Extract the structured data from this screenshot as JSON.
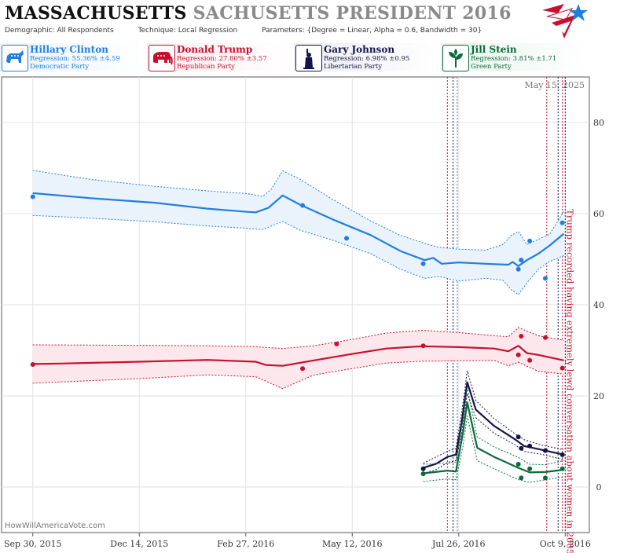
{
  "header": {
    "title_state": "MASSACHUSETTS",
    "title_race": "SACHUSETTS PRESIDENT 2016",
    "demographic_label": "Demographic:",
    "demographic_value": "All Respondents",
    "technique_label": "Technique:",
    "technique_value": "Local Regression",
    "parameters_label": "Parameters:",
    "parameters_value": "{Degree = Linear, Alpha = 0.6, Bandwidth = 30}"
  },
  "candidates": [
    {
      "name": "Hillary Clinton",
      "regression": "Regression: 55.36% ±4.59",
      "party": "Democratic Party",
      "color": "#1f7fe0",
      "bg": "#eaf3fd",
      "icon": "donkey-icon"
    },
    {
      "name": "Donald Trump",
      "regression": "Regression: 27.80% ±3.57",
      "party": "Republican Party",
      "color": "#c8102e",
      "bg": "#fdecef",
      "icon": "elephant-icon"
    },
    {
      "name": "Gary Johnson",
      "regression": "Regression: 6.98% ±0.95",
      "party": "Libertarian Party",
      "color": "#14144a",
      "bg": "#ececf3",
      "icon": "liberty-statue-icon"
    },
    {
      "name": "Jill Stein",
      "regression": "Regression: 3.81% ±1.71",
      "party": "Green Party",
      "color": "#0a6b3a",
      "bg": "#e8f3ec",
      "icon": "leaf-icon"
    }
  ],
  "chart_data": {
    "type": "line",
    "date_label": "May 15, 2025",
    "watermark": "HowWillAmericaVote.com",
    "x_ticks": [
      "2015-09-30",
      "2015-12-14",
      "2016-02-27",
      "2016-05-12",
      "2016-07-26",
      "2016-10-09"
    ],
    "x_tick_labels": [
      "Sep 30, 2015",
      "Dec 14, 2015",
      "Feb 27, 2016",
      "May 12, 2016",
      "Jul 26, 2016",
      "Oct 9, 2016"
    ],
    "xlim": [
      "2015-09-08",
      "2016-10-26"
    ],
    "ylim": [
      -10,
      90
    ],
    "y_ticks": [
      0,
      20,
      40,
      60,
      80
    ],
    "grid": true,
    "annotation": {
      "text": "Trump recorded having extremely lewd conversation about women in 2005",
      "date": "2016-10-07"
    },
    "event_lines": [
      {
        "date": "2016-07-18",
        "color": "#c8102e"
      },
      {
        "date": "2016-07-22",
        "color": "#14144a"
      },
      {
        "date": "2016-07-25",
        "color": "#1f7fe0"
      },
      {
        "date": "2016-09-26",
        "color": "#c8102e"
      },
      {
        "date": "2016-10-04",
        "color": "#14144a"
      },
      {
        "date": "2016-10-07",
        "color": "#c8102e"
      },
      {
        "date": "2016-10-09",
        "color": "#14144a"
      }
    ],
    "series": [
      {
        "name": "Hillary Clinton",
        "color": "#1f7fe0",
        "fill": "#eaf2fb",
        "line": [
          [
            "2015-09-30",
            64.5
          ],
          [
            "2015-11-10",
            63.4
          ],
          [
            "2015-12-25",
            62.4
          ],
          [
            "2016-01-31",
            61.1
          ],
          [
            "2016-02-28",
            60.4
          ],
          [
            "2016-03-05",
            60.3
          ],
          [
            "2016-03-14",
            61.3
          ],
          [
            "2016-03-24",
            64.0
          ],
          [
            "2016-04-05",
            62.0
          ],
          [
            "2016-04-30",
            58.5
          ],
          [
            "2016-05-25",
            55.3
          ],
          [
            "2016-06-15",
            51.8
          ],
          [
            "2016-07-02",
            49.8
          ],
          [
            "2016-07-08",
            50.3
          ],
          [
            "2016-07-14",
            49.0
          ],
          [
            "2016-07-26",
            49.3
          ],
          [
            "2016-08-14",
            49.0
          ],
          [
            "2016-08-30",
            48.8
          ],
          [
            "2016-09-02",
            49.4
          ],
          [
            "2016-09-06",
            48.5
          ],
          [
            "2016-09-12",
            49.8
          ],
          [
            "2016-09-20",
            51.2
          ],
          [
            "2016-09-28",
            53.0
          ],
          [
            "2016-10-08",
            55.6
          ]
        ],
        "upper": [
          [
            "2015-09-30",
            69.5
          ],
          [
            "2015-11-10",
            67.5
          ],
          [
            "2015-12-25",
            66.0
          ],
          [
            "2016-01-31",
            65.0
          ],
          [
            "2016-02-28",
            64.4
          ],
          [
            "2016-03-10",
            63.8
          ],
          [
            "2016-03-16",
            65.4
          ],
          [
            "2016-03-24",
            69.4
          ],
          [
            "2016-04-05",
            67.6
          ],
          [
            "2016-04-30",
            62.8
          ],
          [
            "2016-05-25",
            58.4
          ],
          [
            "2016-06-15",
            55.2
          ],
          [
            "2016-07-02",
            53.5
          ],
          [
            "2016-07-12",
            52.6
          ],
          [
            "2016-07-26",
            52.2
          ],
          [
            "2016-08-14",
            52.0
          ],
          [
            "2016-08-26",
            53.2
          ],
          [
            "2016-09-01",
            55.2
          ],
          [
            "2016-09-06",
            56.1
          ],
          [
            "2016-09-12",
            53.2
          ],
          [
            "2016-09-28",
            55.5
          ],
          [
            "2016-10-08",
            60.5
          ]
        ],
        "lower": [
          [
            "2015-09-30",
            59.6
          ],
          [
            "2015-11-10",
            59.0
          ],
          [
            "2015-12-25",
            58.2
          ],
          [
            "2016-01-31",
            57.3
          ],
          [
            "2016-02-28",
            56.8
          ],
          [
            "2016-03-10",
            56.5
          ],
          [
            "2016-03-24",
            58.3
          ],
          [
            "2016-04-05",
            56.4
          ],
          [
            "2016-04-30",
            54.0
          ],
          [
            "2016-05-25",
            51.2
          ],
          [
            "2016-06-15",
            47.8
          ],
          [
            "2016-07-02",
            45.8
          ],
          [
            "2016-07-12",
            46.2
          ],
          [
            "2016-07-26",
            45.2
          ],
          [
            "2016-08-14",
            45.8
          ],
          [
            "2016-08-26",
            45.4
          ],
          [
            "2016-09-01",
            43.3
          ],
          [
            "2016-09-06",
            42.2
          ],
          [
            "2016-09-12",
            44.8
          ],
          [
            "2016-09-20",
            47.8
          ],
          [
            "2016-09-28",
            49.5
          ],
          [
            "2016-10-08",
            50.8
          ]
        ],
        "points": [
          [
            "2015-09-30",
            63.7
          ],
          [
            "2016-04-07",
            61.8
          ],
          [
            "2016-05-08",
            54.6
          ],
          [
            "2016-07-01",
            49.0
          ],
          [
            "2016-09-06",
            47.8
          ],
          [
            "2016-09-08",
            49.8
          ],
          [
            "2016-09-14",
            54.0
          ],
          [
            "2016-09-25",
            45.8
          ],
          [
            "2016-10-07",
            58.0
          ]
        ]
      },
      {
        "name": "Donald Trump",
        "color": "#c8102e",
        "fill": "#fbe7ec",
        "line": [
          [
            "2015-09-30",
            27.0
          ],
          [
            "2015-10-20",
            27.1
          ],
          [
            "2015-12-14",
            27.5
          ],
          [
            "2016-01-31",
            27.9
          ],
          [
            "2016-03-05",
            27.5
          ],
          [
            "2016-03-12",
            26.8
          ],
          [
            "2016-03-24",
            26.6
          ],
          [
            "2016-04-15",
            27.8
          ],
          [
            "2016-05-12",
            29.2
          ],
          [
            "2016-06-05",
            30.4
          ],
          [
            "2016-06-30",
            30.9
          ],
          [
            "2016-07-26",
            30.7
          ],
          [
            "2016-08-20",
            30.4
          ],
          [
            "2016-08-30",
            29.8
          ],
          [
            "2016-09-06",
            31.0
          ],
          [
            "2016-09-12",
            29.4
          ],
          [
            "2016-09-20",
            29.0
          ],
          [
            "2016-10-08",
            27.8
          ]
        ],
        "upper": [
          [
            "2015-09-30",
            31.2
          ],
          [
            "2015-12-14",
            31.1
          ],
          [
            "2016-01-31",
            31.0
          ],
          [
            "2016-03-05",
            30.8
          ],
          [
            "2016-03-24",
            30.4
          ],
          [
            "2016-04-15",
            31.0
          ],
          [
            "2016-05-12",
            32.4
          ],
          [
            "2016-06-05",
            33.8
          ],
          [
            "2016-06-30",
            34.4
          ],
          [
            "2016-07-26",
            33.9
          ],
          [
            "2016-08-20",
            33.2
          ],
          [
            "2016-08-30",
            33.0
          ],
          [
            "2016-09-06",
            35.0
          ],
          [
            "2016-09-20",
            33.2
          ],
          [
            "2016-10-08",
            32.2
          ]
        ],
        "lower": [
          [
            "2015-09-30",
            22.8
          ],
          [
            "2015-12-14",
            23.8
          ],
          [
            "2016-01-31",
            24.6
          ],
          [
            "2016-03-05",
            24.2
          ],
          [
            "2016-03-24",
            21.6
          ],
          [
            "2016-04-15",
            24.6
          ],
          [
            "2016-05-12",
            26.0
          ],
          [
            "2016-06-05",
            27.2
          ],
          [
            "2016-06-30",
            27.6
          ],
          [
            "2016-07-26",
            27.7
          ],
          [
            "2016-08-20",
            27.8
          ],
          [
            "2016-08-30",
            26.6
          ],
          [
            "2016-09-06",
            27.4
          ],
          [
            "2016-09-20",
            25.4
          ],
          [
            "2016-10-08",
            24.8
          ]
        ],
        "points": [
          [
            "2015-09-30",
            26.9
          ],
          [
            "2016-04-07",
            26.0
          ],
          [
            "2016-05-01",
            31.4
          ],
          [
            "2016-07-01",
            31.0
          ],
          [
            "2016-09-06",
            29.0
          ],
          [
            "2016-09-08",
            33.1
          ],
          [
            "2016-09-14",
            27.8
          ],
          [
            "2016-09-25",
            32.8
          ],
          [
            "2016-10-07",
            26.1
          ]
        ]
      },
      {
        "name": "Gary Johnson",
        "color": "#14144a",
        "fill": "none",
        "line": [
          [
            "2016-07-01",
            4.2
          ],
          [
            "2016-07-10",
            5.1
          ],
          [
            "2016-07-18",
            6.6
          ],
          [
            "2016-07-24",
            7.1
          ],
          [
            "2016-07-28",
            14.0
          ],
          [
            "2016-08-01",
            23.0
          ],
          [
            "2016-08-07",
            17.0
          ],
          [
            "2016-08-20",
            13.4
          ],
          [
            "2016-09-04",
            10.4
          ],
          [
            "2016-09-10",
            9.0
          ],
          [
            "2016-09-22",
            8.2
          ],
          [
            "2016-10-08",
            7.1
          ]
        ],
        "upper": [
          [
            "2016-07-01",
            5.2
          ],
          [
            "2016-07-10",
            6.6
          ],
          [
            "2016-07-18",
            7.8
          ],
          [
            "2016-07-24",
            8.4
          ],
          [
            "2016-07-28",
            16.2
          ],
          [
            "2016-08-01",
            25.5
          ],
          [
            "2016-08-07",
            19.0
          ],
          [
            "2016-08-20",
            15.0
          ],
          [
            "2016-09-04",
            11.6
          ],
          [
            "2016-09-10",
            10.4
          ],
          [
            "2016-09-22",
            9.2
          ],
          [
            "2016-10-08",
            8.2
          ]
        ],
        "lower": [
          [
            "2016-07-01",
            3.0
          ],
          [
            "2016-07-10",
            3.8
          ],
          [
            "2016-07-18",
            5.4
          ],
          [
            "2016-07-24",
            5.8
          ],
          [
            "2016-07-28",
            11.8
          ],
          [
            "2016-08-01",
            20.5
          ],
          [
            "2016-08-07",
            15.2
          ],
          [
            "2016-08-20",
            11.8
          ],
          [
            "2016-09-04",
            9.2
          ],
          [
            "2016-09-10",
            7.8
          ],
          [
            "2016-09-22",
            7.2
          ],
          [
            "2016-10-08",
            6.0
          ]
        ],
        "points": [
          [
            "2016-07-01",
            4.0
          ],
          [
            "2016-09-06",
            11.0
          ],
          [
            "2016-09-08",
            8.5
          ],
          [
            "2016-09-14",
            9.0
          ],
          [
            "2016-09-25",
            8.0
          ],
          [
            "2016-10-07",
            7.1
          ]
        ]
      },
      {
        "name": "Jill Stein",
        "color": "#0a6b3a",
        "fill": "none",
        "line": [
          [
            "2016-07-01",
            3.0
          ],
          [
            "2016-07-18",
            3.6
          ],
          [
            "2016-07-24",
            3.4
          ],
          [
            "2016-07-29",
            12.0
          ],
          [
            "2016-08-01",
            18.6
          ],
          [
            "2016-08-08",
            8.6
          ],
          [
            "2016-08-20",
            6.6
          ],
          [
            "2016-09-06",
            4.2
          ],
          [
            "2016-09-14",
            3.2
          ],
          [
            "2016-09-25",
            3.3
          ],
          [
            "2016-10-08",
            3.8
          ]
        ],
        "upper": [
          [
            "2016-07-01",
            5.0
          ],
          [
            "2016-07-18",
            5.2
          ],
          [
            "2016-07-24",
            5.5
          ],
          [
            "2016-07-29",
            15.0
          ],
          [
            "2016-08-01",
            21.8
          ],
          [
            "2016-08-08",
            11.0
          ],
          [
            "2016-08-20",
            8.8
          ],
          [
            "2016-09-06",
            6.5
          ],
          [
            "2016-09-14",
            5.0
          ],
          [
            "2016-09-25",
            4.9
          ],
          [
            "2016-10-08",
            5.8
          ]
        ],
        "lower": [
          [
            "2016-07-01",
            1.2
          ],
          [
            "2016-07-18",
            1.8
          ],
          [
            "2016-07-24",
            1.6
          ],
          [
            "2016-07-29",
            9.0
          ],
          [
            "2016-08-01",
            15.6
          ],
          [
            "2016-08-08",
            5.8
          ],
          [
            "2016-08-20",
            4.0
          ],
          [
            "2016-09-06",
            1.6
          ],
          [
            "2016-09-14",
            1.0
          ],
          [
            "2016-09-25",
            1.6
          ],
          [
            "2016-10-08",
            2.2
          ]
        ],
        "points": [
          [
            "2016-07-01",
            2.9
          ],
          [
            "2016-09-06",
            5.0
          ],
          [
            "2016-09-08",
            2.0
          ],
          [
            "2016-09-14",
            4.0
          ],
          [
            "2016-09-25",
            2.0
          ],
          [
            "2016-10-07",
            4.0
          ]
        ]
      }
    ]
  }
}
